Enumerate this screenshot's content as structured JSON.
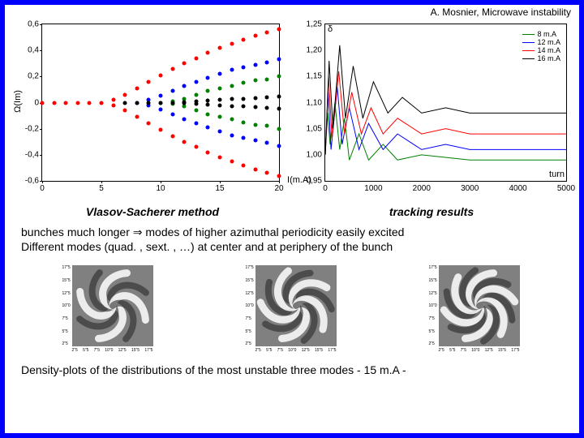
{
  "header": {
    "attribution": "A. Mosnier, Microwave instability"
  },
  "left_chart": {
    "type": "scatter",
    "xlabel": "I(m.A)",
    "ylabel_char": "Ω",
    "ylabel_unit": "(Im)",
    "xlim": [
      0,
      20
    ],
    "ylim": [
      -0.6,
      0.6
    ],
    "xticks": [
      0,
      5,
      10,
      15,
      20
    ],
    "yticks": [
      "-0,6",
      "-0,4",
      "-0,2",
      "0",
      "0,2",
      "0,4",
      "0,6"
    ],
    "ytick_values": [
      -0.6,
      -0.4,
      -0.2,
      0,
      0.2,
      0.4,
      0.6
    ],
    "marker_size": 5,
    "series": [
      {
        "color": "#ff0000",
        "points": [
          [
            0,
            0
          ],
          [
            1,
            0
          ],
          [
            2,
            0
          ],
          [
            3,
            0
          ],
          [
            4,
            0
          ],
          [
            5,
            0
          ],
          [
            6,
            0.02
          ],
          [
            7,
            0.06
          ],
          [
            8,
            0.11
          ],
          [
            9,
            0.16
          ],
          [
            10,
            0.21
          ],
          [
            11,
            0.26
          ],
          [
            12,
            0.3
          ],
          [
            13,
            0.34
          ],
          [
            14,
            0.38
          ],
          [
            15,
            0.42
          ],
          [
            16,
            0.45
          ],
          [
            17,
            0.48
          ],
          [
            18,
            0.51
          ],
          [
            19,
            0.54
          ],
          [
            20,
            0.56
          ]
        ]
      },
      {
        "color": "#ff0000",
        "points": [
          [
            6,
            -0.02
          ],
          [
            7,
            -0.06
          ],
          [
            8,
            -0.11
          ],
          [
            9,
            -0.16
          ],
          [
            10,
            -0.21
          ],
          [
            11,
            -0.26
          ],
          [
            12,
            -0.3
          ],
          [
            13,
            -0.34
          ],
          [
            14,
            -0.38
          ],
          [
            15,
            -0.42
          ],
          [
            16,
            -0.45
          ],
          [
            17,
            -0.48
          ],
          [
            18,
            -0.51
          ],
          [
            19,
            -0.54
          ],
          [
            20,
            -0.56
          ]
        ]
      },
      {
        "color": "#0000ff",
        "points": [
          [
            8,
            0
          ],
          [
            9,
            0.02
          ],
          [
            10,
            0.05
          ],
          [
            11,
            0.09
          ],
          [
            12,
            0.13
          ],
          [
            13,
            0.16
          ],
          [
            14,
            0.19
          ],
          [
            15,
            0.22
          ],
          [
            16,
            0.25
          ],
          [
            17,
            0.27
          ],
          [
            18,
            0.29
          ],
          [
            19,
            0.31
          ],
          [
            20,
            0.33
          ]
        ]
      },
      {
        "color": "#0000ff",
        "points": [
          [
            9,
            -0.02
          ],
          [
            10,
            -0.05
          ],
          [
            11,
            -0.09
          ],
          [
            12,
            -0.13
          ],
          [
            13,
            -0.16
          ],
          [
            14,
            -0.19
          ],
          [
            15,
            -0.22
          ],
          [
            16,
            -0.25
          ],
          [
            17,
            -0.27
          ],
          [
            18,
            -0.29
          ],
          [
            19,
            -0.31
          ],
          [
            20,
            -0.33
          ]
        ]
      },
      {
        "color": "#008000",
        "points": [
          [
            10,
            0
          ],
          [
            11,
            0.01
          ],
          [
            12,
            0.03
          ],
          [
            13,
            0.06
          ],
          [
            14,
            0.09
          ],
          [
            15,
            0.11
          ],
          [
            16,
            0.13
          ],
          [
            17,
            0.15
          ],
          [
            18,
            0.17
          ],
          [
            19,
            0.18
          ],
          [
            20,
            0.2
          ]
        ]
      },
      {
        "color": "#008000",
        "points": [
          [
            11,
            -0.01
          ],
          [
            12,
            -0.03
          ],
          [
            13,
            -0.06
          ],
          [
            14,
            -0.09
          ],
          [
            15,
            -0.11
          ],
          [
            16,
            -0.13
          ],
          [
            17,
            -0.15
          ],
          [
            18,
            -0.17
          ],
          [
            19,
            -0.18
          ],
          [
            20,
            -0.2
          ]
        ]
      },
      {
        "color": "#000000",
        "points": [
          [
            7,
            0
          ],
          [
            8,
            0
          ],
          [
            9,
            0
          ],
          [
            10,
            0
          ],
          [
            11,
            0
          ],
          [
            12,
            0.005
          ],
          [
            13,
            0.01
          ],
          [
            14,
            0.015
          ],
          [
            15,
            0.02
          ],
          [
            16,
            0.025
          ],
          [
            17,
            0.03
          ],
          [
            18,
            0.035
          ],
          [
            19,
            0.04
          ],
          [
            20,
            0.045
          ]
        ]
      },
      {
        "color": "#000000",
        "points": [
          [
            12,
            -0.005
          ],
          [
            13,
            -0.01
          ],
          [
            14,
            -0.015
          ],
          [
            15,
            -0.02
          ],
          [
            16,
            -0.025
          ],
          [
            17,
            -0.03
          ],
          [
            18,
            -0.035
          ],
          [
            19,
            -0.04
          ],
          [
            20,
            -0.045
          ]
        ]
      }
    ]
  },
  "right_chart": {
    "type": "line",
    "xlabel": "turn",
    "ylabel": "δ",
    "xlim": [
      0,
      5000
    ],
    "ylim": [
      0.95,
      1.25
    ],
    "xticks": [
      0,
      1000,
      2000,
      3000,
      4000,
      5000
    ],
    "yticks": [
      "0,95",
      "1,00",
      "1,05",
      "1,10",
      "1,15",
      "1,20",
      "1,25"
    ],
    "ytick_values": [
      0.95,
      1.0,
      1.05,
      1.1,
      1.15,
      1.2,
      1.25
    ],
    "line_width": 1,
    "legend": [
      {
        "label": "8 m.A",
        "color": "#008000"
      },
      {
        "label": "12 m.A",
        "color": "#0000ff"
      },
      {
        "label": "14 m.A",
        "color": "#ff0000"
      },
      {
        "label": "16 m.A",
        "color": "#000000"
      }
    ],
    "series": [
      {
        "color": "#008000",
        "points": [
          [
            0,
            1.0
          ],
          [
            50,
            1.08
          ],
          [
            100,
            1.02
          ],
          [
            200,
            1.1
          ],
          [
            300,
            1.01
          ],
          [
            400,
            1.07
          ],
          [
            500,
            0.99
          ],
          [
            700,
            1.04
          ],
          [
            900,
            0.99
          ],
          [
            1200,
            1.02
          ],
          [
            1500,
            0.99
          ],
          [
            2000,
            1.0
          ],
          [
            3000,
            0.99
          ],
          [
            4000,
            0.99
          ],
          [
            5000,
            0.99
          ]
        ]
      },
      {
        "color": "#0000ff",
        "points": [
          [
            0,
            1.0
          ],
          [
            60,
            1.12
          ],
          [
            120,
            1.01
          ],
          [
            250,
            1.13
          ],
          [
            350,
            1.02
          ],
          [
            500,
            1.09
          ],
          [
            700,
            1.01
          ],
          [
            900,
            1.06
          ],
          [
            1200,
            1.01
          ],
          [
            1500,
            1.04
          ],
          [
            2000,
            1.01
          ],
          [
            2500,
            1.02
          ],
          [
            3000,
            1.01
          ],
          [
            4000,
            1.01
          ],
          [
            5000,
            1.01
          ]
        ]
      },
      {
        "color": "#ff0000",
        "points": [
          [
            0,
            1.0
          ],
          [
            70,
            1.15
          ],
          [
            140,
            1.03
          ],
          [
            280,
            1.16
          ],
          [
            400,
            1.04
          ],
          [
            550,
            1.12
          ],
          [
            750,
            1.04
          ],
          [
            950,
            1.09
          ],
          [
            1200,
            1.04
          ],
          [
            1500,
            1.07
          ],
          [
            2000,
            1.04
          ],
          [
            2500,
            1.05
          ],
          [
            3000,
            1.04
          ],
          [
            4000,
            1.04
          ],
          [
            5000,
            1.04
          ]
        ]
      },
      {
        "color": "#000000",
        "points": [
          [
            0,
            1.0
          ],
          [
            80,
            1.18
          ],
          [
            160,
            1.05
          ],
          [
            300,
            1.21
          ],
          [
            420,
            1.07
          ],
          [
            580,
            1.17
          ],
          [
            780,
            1.07
          ],
          [
            1000,
            1.14
          ],
          [
            1300,
            1.08
          ],
          [
            1600,
            1.11
          ],
          [
            2000,
            1.08
          ],
          [
            2500,
            1.09
          ],
          [
            3000,
            1.08
          ],
          [
            3500,
            1.08
          ],
          [
            4000,
            1.08
          ],
          [
            5000,
            1.08
          ]
        ]
      }
    ]
  },
  "captions": {
    "left": "Vlasov-Sacherer method",
    "right": "tracking results"
  },
  "text_block": {
    "line1_a": "bunches much longer ",
    "line1_arrow": "⇒",
    "line1_b": " modes of higher azimuthal periodicity easily excited",
    "line2": "Different modes (quad. , sext. , …) at center and at periphery of the bunch"
  },
  "density_plots": {
    "count": 3,
    "arm_counts": [
      4,
      5,
      6
    ],
    "background": "#808080",
    "arm_color": "#ffffff",
    "dark_color": "#2a2a2a",
    "xticks": [
      "2\"5",
      "5\"5",
      "7\"5",
      "10\"0",
      "12\"5",
      "15\"5",
      "17\"5"
    ],
    "yticks": [
      "2\"5",
      "5\"5",
      "7\"5",
      "10\"0",
      "12\"5",
      "15\"5",
      "17\"5"
    ]
  },
  "bottom_caption": "Density-plots of the distributions of the most unstable three modes  - 15 m.A -"
}
